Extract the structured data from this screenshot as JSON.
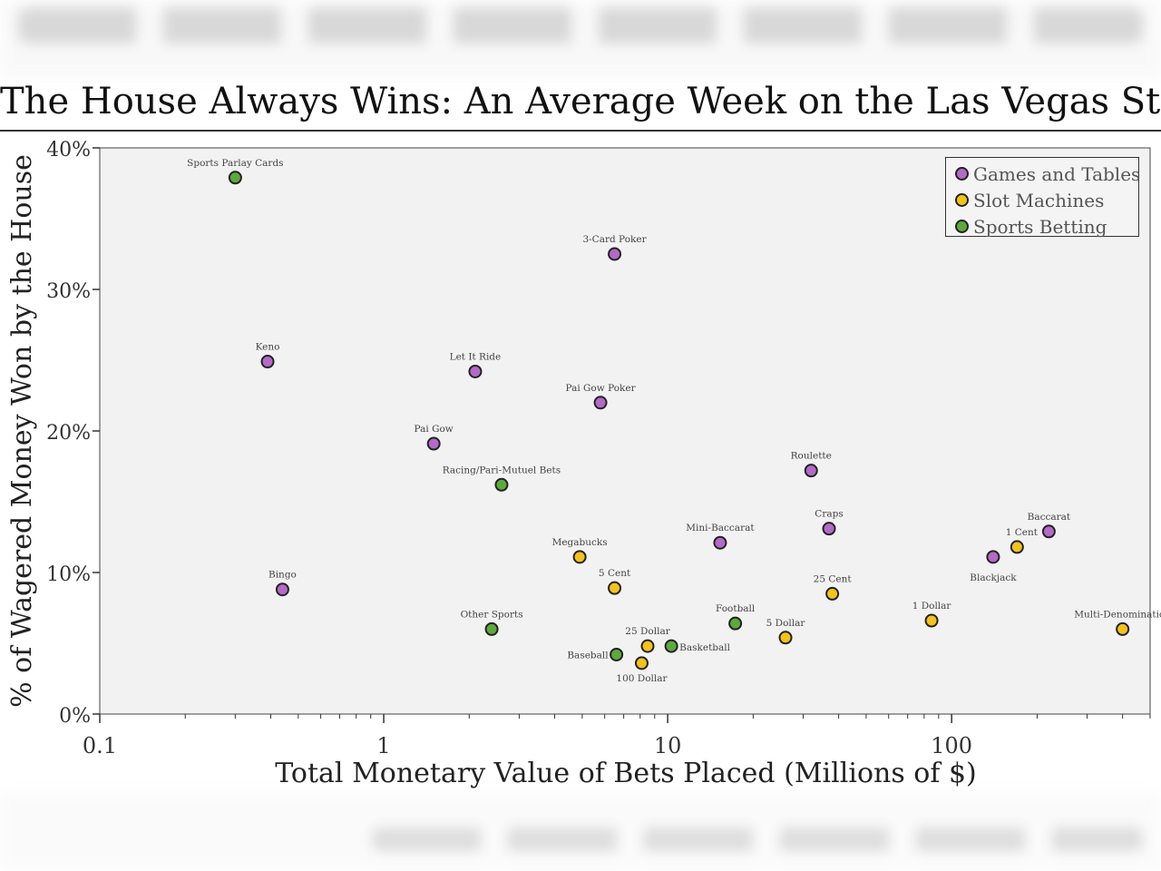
{
  "title": "The House Always Wins: An Average Week on the Las Vegas Strip",
  "chart_data": {
    "type": "scatter",
    "title": "The House Always Wins: An Average Week on the Las Vegas Strip",
    "xlabel": "Total Monetary Value of Bets Placed (Millions of $)",
    "ylabel": "% of Wagered Money Won by the House",
    "x_scale": "log",
    "xlim": [
      0.1,
      500
    ],
    "ylim": [
      0,
      40
    ],
    "x_ticks": [
      0.1,
      1,
      10,
      100
    ],
    "x_tick_labels": [
      "0.1",
      "1",
      "10",
      "100"
    ],
    "y_ticks": [
      0,
      10,
      20,
      30,
      40
    ],
    "y_tick_labels": [
      "0%",
      "10%",
      "20%",
      "30%",
      "40%"
    ],
    "grid": false,
    "legend_position": "top-right",
    "colors": {
      "plot_background": "#f2f2f2",
      "Games and Tables": "#b569c8",
      "Slot Machines": "#f4c21c",
      "Sports Betting": "#5daa3c"
    },
    "series": [
      {
        "name": "Games and Tables",
        "points": [
          {
            "label": "3-Card Poker",
            "x": 6.5,
            "y": 32.5
          },
          {
            "label": "Keno",
            "x": 0.39,
            "y": 24.9
          },
          {
            "label": "Let It Ride",
            "x": 2.1,
            "y": 24.2
          },
          {
            "label": "Pai Gow Poker",
            "x": 5.8,
            "y": 22.0
          },
          {
            "label": "Pai Gow",
            "x": 1.5,
            "y": 19.1
          },
          {
            "label": "Roulette",
            "x": 32,
            "y": 17.2
          },
          {
            "label": "Craps",
            "x": 37,
            "y": 13.1
          },
          {
            "label": "Mini-Baccarat",
            "x": 15.3,
            "y": 12.1
          },
          {
            "label": "Baccarat",
            "x": 220,
            "y": 12.9
          },
          {
            "label": "Blackjack",
            "x": 140,
            "y": 11.1
          },
          {
            "label": "Bingo",
            "x": 0.44,
            "y": 8.8
          }
        ]
      },
      {
        "name": "Slot Machines",
        "points": [
          {
            "label": "Megabucks",
            "x": 4.9,
            "y": 11.1
          },
          {
            "label": "1 Cent",
            "x": 170,
            "y": 11.8
          },
          {
            "label": "5 Cent",
            "x": 6.5,
            "y": 8.9
          },
          {
            "label": "25 Cent",
            "x": 38,
            "y": 8.5
          },
          {
            "label": "1 Dollar",
            "x": 85,
            "y": 6.6
          },
          {
            "label": "Multi-Denomination",
            "x": 400,
            "y": 6.0
          },
          {
            "label": "5 Dollar",
            "x": 26,
            "y": 5.4
          },
          {
            "label": "25 Dollar",
            "x": 8.5,
            "y": 4.8
          },
          {
            "label": "100 Dollar",
            "x": 8.1,
            "y": 3.6
          }
        ]
      },
      {
        "name": "Sports Betting",
        "points": [
          {
            "label": "Sports Parlay Cards",
            "x": 0.3,
            "y": 37.9
          },
          {
            "label": "Racing/Pari-Mutuel Bets",
            "x": 2.6,
            "y": 16.2
          },
          {
            "label": "Other Sports",
            "x": 2.4,
            "y": 6.0
          },
          {
            "label": "Football",
            "x": 17.3,
            "y": 6.4
          },
          {
            "label": "Basketball",
            "x": 10.3,
            "y": 4.8
          },
          {
            "label": "Baseball",
            "x": 6.6,
            "y": 4.2
          }
        ]
      }
    ]
  }
}
